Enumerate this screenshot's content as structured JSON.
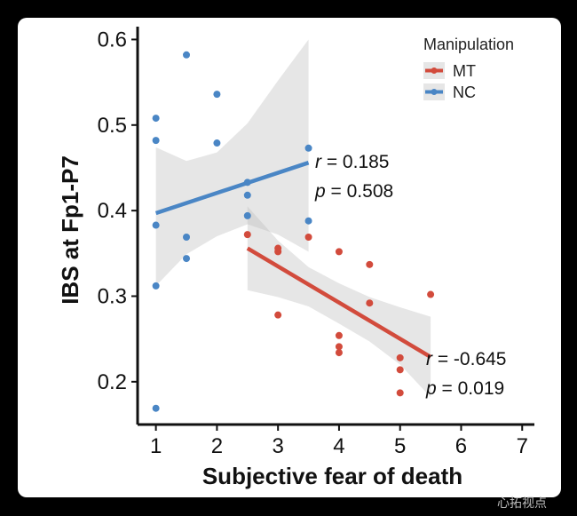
{
  "chart_data": {
    "type": "scatter",
    "xlabel": "Subjective fear of death",
    "ylabel": "IBS at Fp1-P7",
    "xlim": [
      0.7,
      7.2
    ],
    "ylim": [
      0.15,
      0.615
    ],
    "xticks": [
      1,
      2,
      3,
      4,
      5,
      6,
      7
    ],
    "yticks": [
      0.2,
      0.3,
      0.4,
      0.5,
      0.6
    ],
    "xtick_labels": [
      "1",
      "2",
      "3",
      "4",
      "5",
      "6",
      "7"
    ],
    "ytick_labels": [
      "0.2",
      "0.3",
      "0.4",
      "0.5",
      "0.6"
    ],
    "legend": {
      "title": "Manipulation",
      "position": "top-right"
    },
    "series": [
      {
        "name": "MT",
        "color": "#d24b3c",
        "points": [
          [
            2.5,
            0.372
          ],
          [
            3.0,
            0.356
          ],
          [
            3.0,
            0.352
          ],
          [
            3.0,
            0.278
          ],
          [
            3.5,
            0.369
          ],
          [
            4.0,
            0.352
          ],
          [
            4.0,
            0.254
          ],
          [
            4.0,
            0.241
          ],
          [
            4.0,
            0.234
          ],
          [
            4.5,
            0.337
          ],
          [
            4.5,
            0.292
          ],
          [
            5.0,
            0.228
          ],
          [
            5.0,
            0.214
          ],
          [
            5.0,
            0.187
          ],
          [
            5.5,
            0.302
          ]
        ],
        "fit": {
          "x": [
            2.5,
            5.5
          ],
          "y": [
            0.356,
            0.229
          ]
        },
        "ci": {
          "x": [
            2.5,
            3.0,
            3.5,
            4.0,
            4.5,
            5.0,
            5.5
          ],
          "upper": [
            0.405,
            0.365,
            0.334,
            0.315,
            0.299,
            0.287,
            0.276
          ],
          "lower": [
            0.307,
            0.299,
            0.288,
            0.268,
            0.247,
            0.22,
            0.182
          ]
        },
        "annotation": {
          "r_label": "r",
          "r_value": " = -0.645",
          "p_label": "p",
          "p_value": " = 0.019"
        }
      },
      {
        "name": "NC",
        "color": "#4a86c5",
        "points": [
          [
            1.0,
            0.508
          ],
          [
            1.0,
            0.482
          ],
          [
            1.0,
            0.383
          ],
          [
            1.0,
            0.312
          ],
          [
            1.0,
            0.169
          ],
          [
            1.5,
            0.582
          ],
          [
            1.5,
            0.369
          ],
          [
            1.5,
            0.344
          ],
          [
            2.0,
            0.536
          ],
          [
            2.0,
            0.479
          ],
          [
            2.5,
            0.433
          ],
          [
            2.5,
            0.418
          ],
          [
            2.5,
            0.394
          ],
          [
            3.5,
            0.473
          ],
          [
            3.5,
            0.388
          ]
        ],
        "fit": {
          "x": [
            1.0,
            3.5
          ],
          "y": [
            0.397,
            0.456
          ]
        },
        "ci": {
          "x": [
            1.0,
            1.5,
            2.0,
            2.5,
            3.0,
            3.5
          ],
          "upper": [
            0.474,
            0.458,
            0.468,
            0.502,
            0.552,
            0.6
          ],
          "lower": [
            0.312,
            0.349,
            0.37,
            0.384,
            0.372,
            0.352
          ]
        },
        "annotation": {
          "r_label": "r",
          "r_value": " = 0.185",
          "p_label": "p",
          "p_value": " = 0.508"
        }
      }
    ]
  },
  "watermark": "心拓视点"
}
